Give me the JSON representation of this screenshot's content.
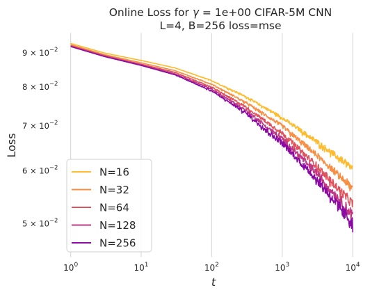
{
  "chart_data": {
    "type": "line",
    "title_line1_prefix": "Online Loss for ",
    "title_line1_symbol": "γ",
    "title_line1_suffix": " = 1e+00 CIFAR-5M CNN",
    "title_line2": "L=4, B=256 loss=mse",
    "xlabel": "t",
    "ylabel": "Loss",
    "xscale": "log",
    "yscale": "log",
    "xlim": [
      0.75,
      15000
    ],
    "ylim": [
      0.0445,
      0.0965
    ],
    "grid": true,
    "legend_position": "lower-left",
    "x_ticks": [
      {
        "base": "10",
        "exp": "0",
        "value": 1
      },
      {
        "base": "10",
        "exp": "1",
        "value": 10
      },
      {
        "base": "10",
        "exp": "2",
        "value": 100
      },
      {
        "base": "10",
        "exp": "3",
        "value": 1000
      },
      {
        "base": "10",
        "exp": "4",
        "value": 10000
      }
    ],
    "y_ticks": [
      {
        "mant": "9 × 10",
        "exp": "−2",
        "value": 0.09
      },
      {
        "mant": "8 × 10",
        "exp": "−2",
        "value": 0.08
      },
      {
        "mant": "7 × 10",
        "exp": "−2",
        "value": 0.07
      },
      {
        "mant": "6 × 10",
        "exp": "−2",
        "value": 0.06
      },
      {
        "mant": "5 × 10",
        "exp": "−2",
        "value": 0.05
      }
    ],
    "series": [
      {
        "name": "N=16",
        "color": "#fdbb2f",
        "points": [
          [
            1,
            0.093
          ],
          [
            3,
            0.09
          ],
          [
            10,
            0.0877
          ],
          [
            30,
            0.0855
          ],
          [
            100,
            0.0818
          ],
          [
            300,
            0.0775
          ],
          [
            1000,
            0.072
          ],
          [
            3000,
            0.0665
          ],
          [
            10000,
            0.0605
          ]
        ],
        "spread": 0.05
      },
      {
        "name": "N=32",
        "color": "#f68f44",
        "points": [
          [
            1,
            0.0926
          ],
          [
            3,
            0.0895
          ],
          [
            10,
            0.087
          ],
          [
            30,
            0.0847
          ],
          [
            100,
            0.0808
          ],
          [
            300,
            0.076
          ],
          [
            1000,
            0.07
          ],
          [
            3000,
            0.0635
          ],
          [
            10000,
            0.0565
          ]
        ],
        "spread": 0.06
      },
      {
        "name": "N=64",
        "color": "#e1535c",
        "points": [
          [
            1,
            0.0923
          ],
          [
            3,
            0.0892
          ],
          [
            10,
            0.0866
          ],
          [
            30,
            0.0842
          ],
          [
            100,
            0.08
          ],
          [
            300,
            0.0748
          ],
          [
            1000,
            0.0683
          ],
          [
            3000,
            0.0612
          ],
          [
            10000,
            0.0535
          ]
        ],
        "spread": 0.07
      },
      {
        "name": "N=128",
        "color": "#bf3984",
        "points": [
          [
            1,
            0.0921
          ],
          [
            3,
            0.089
          ],
          [
            10,
            0.0864
          ],
          [
            30,
            0.0838
          ],
          [
            100,
            0.0795
          ],
          [
            300,
            0.074
          ],
          [
            1000,
            0.067
          ],
          [
            3000,
            0.0597
          ],
          [
            10000,
            0.0515
          ]
        ],
        "spread": 0.08
      },
      {
        "name": "N=256",
        "color": "#8b0aa5",
        "points": [
          [
            1,
            0.092
          ],
          [
            3,
            0.0889
          ],
          [
            10,
            0.0862
          ],
          [
            30,
            0.0835
          ],
          [
            100,
            0.079
          ],
          [
            300,
            0.0733
          ],
          [
            1000,
            0.066
          ],
          [
            3000,
            0.0585
          ],
          [
            10000,
            0.05
          ]
        ],
        "spread": 0.09
      }
    ]
  }
}
